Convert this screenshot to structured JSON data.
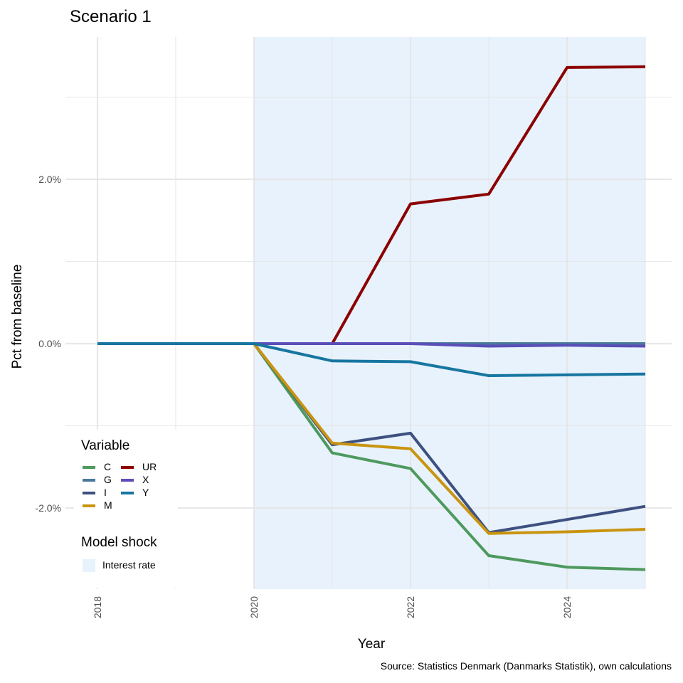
{
  "title": "Scenario 1",
  "caption": "Source: Statistics Denmark (Danmarks Statistik), own calculations",
  "colors": {
    "shock_fill": "#e8f2fc",
    "grid": "#e4e4e4",
    "C": "#4e9a5e",
    "G": "#497a9c",
    "I": "#3d5080",
    "M": "#c9940f",
    "UR": "#8b0000",
    "X": "#5b4eb8",
    "Y": "#1776a0"
  },
  "legend": {
    "variable_title": "Variable",
    "shock_title": "Model shock",
    "shock_label": "Interest rate"
  },
  "chart_data": {
    "type": "line",
    "title": "Scenario 1",
    "xlabel": "Year",
    "ylabel": "Pct from baseline",
    "x": [
      2018,
      2019,
      2020,
      2021,
      2022,
      2023,
      2024,
      2025
    ],
    "xlim": [
      2018,
      2025
    ],
    "xticks": [
      2018,
      2020,
      2022,
      2024
    ],
    "xtick_labels": [
      "2018",
      "2020",
      "2022",
      "2024"
    ],
    "ylim": [
      -3.0,
      3.7
    ],
    "yticks": [
      -2.0,
      0.0,
      2.0
    ],
    "ytick_labels": [
      "-2.0%",
      "0.0%",
      "2.0%"
    ],
    "grid": true,
    "shaded_region": {
      "label": "Interest rate",
      "x_start": 2020,
      "x_end": 2025
    },
    "series": [
      {
        "name": "C",
        "values": [
          0,
          0,
          0,
          -1.33,
          -1.52,
          -2.58,
          -2.72,
          -2.75
        ]
      },
      {
        "name": "G",
        "values": [
          0,
          0,
          0,
          0,
          0,
          0,
          0,
          0
        ]
      },
      {
        "name": "I",
        "values": [
          0,
          0,
          0,
          -1.23,
          -1.09,
          -2.3,
          -2.14,
          -1.98
        ]
      },
      {
        "name": "M",
        "values": [
          0,
          0,
          0,
          -1.21,
          -1.28,
          -2.31,
          -2.29,
          -2.26
        ]
      },
      {
        "name": "UR",
        "values": [
          null,
          null,
          null,
          0,
          1.7,
          1.82,
          3.36,
          3.37
        ]
      },
      {
        "name": "X",
        "values": [
          0,
          0,
          0,
          0,
          0,
          -0.03,
          -0.02,
          -0.03
        ]
      },
      {
        "name": "Y",
        "values": [
          0,
          0,
          0,
          -0.21,
          -0.22,
          -0.39,
          -0.38,
          -0.37
        ]
      }
    ]
  }
}
